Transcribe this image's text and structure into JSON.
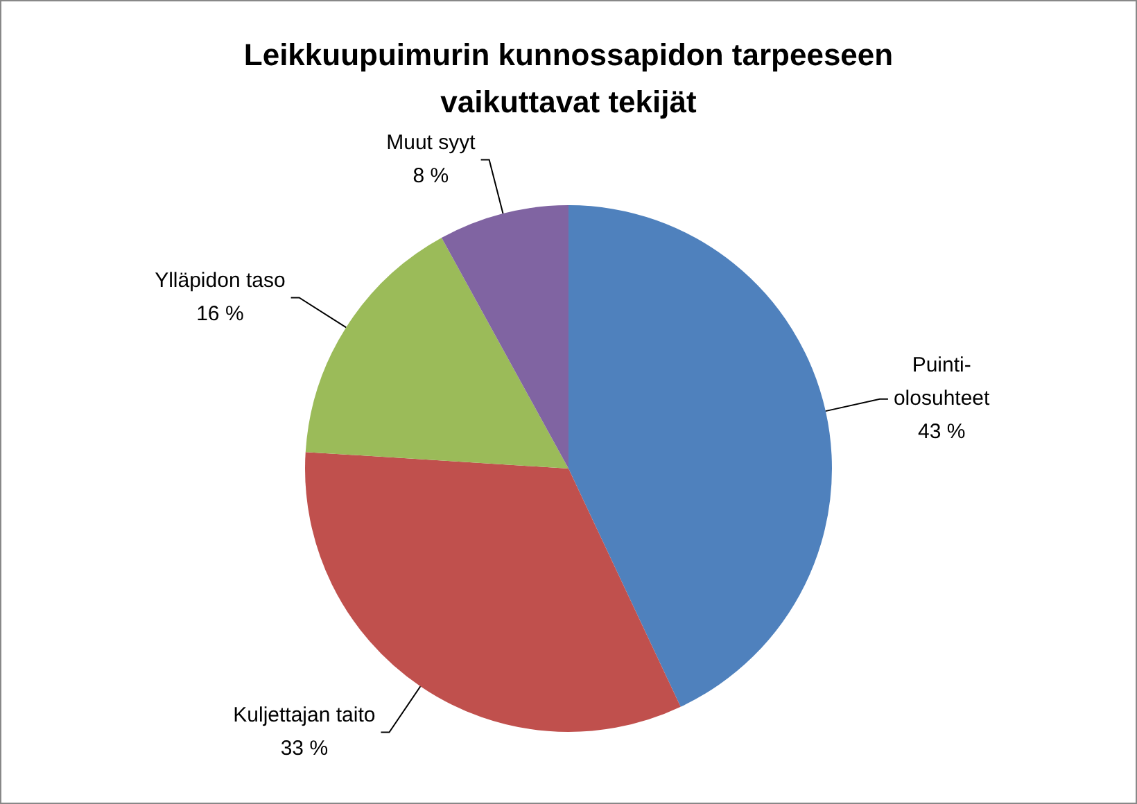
{
  "chart_data": {
    "type": "pie",
    "title": "Leikkuupuimurin kunnossapidon tarpeeseen vaikuttavat tekijät",
    "categories": [
      "Puinti-olosuhteet",
      "Kuljettajan taito",
      "Ylläpidon taso",
      "Muut syyt"
    ],
    "values": [
      43,
      33,
      16,
      8
    ],
    "colors": [
      "#4f81bd",
      "#c0504d",
      "#9bbb59",
      "#8064a2"
    ],
    "value_labels": [
      "43 %",
      "33 %",
      "16 %",
      "8 %"
    ],
    "legend": false
  }
}
